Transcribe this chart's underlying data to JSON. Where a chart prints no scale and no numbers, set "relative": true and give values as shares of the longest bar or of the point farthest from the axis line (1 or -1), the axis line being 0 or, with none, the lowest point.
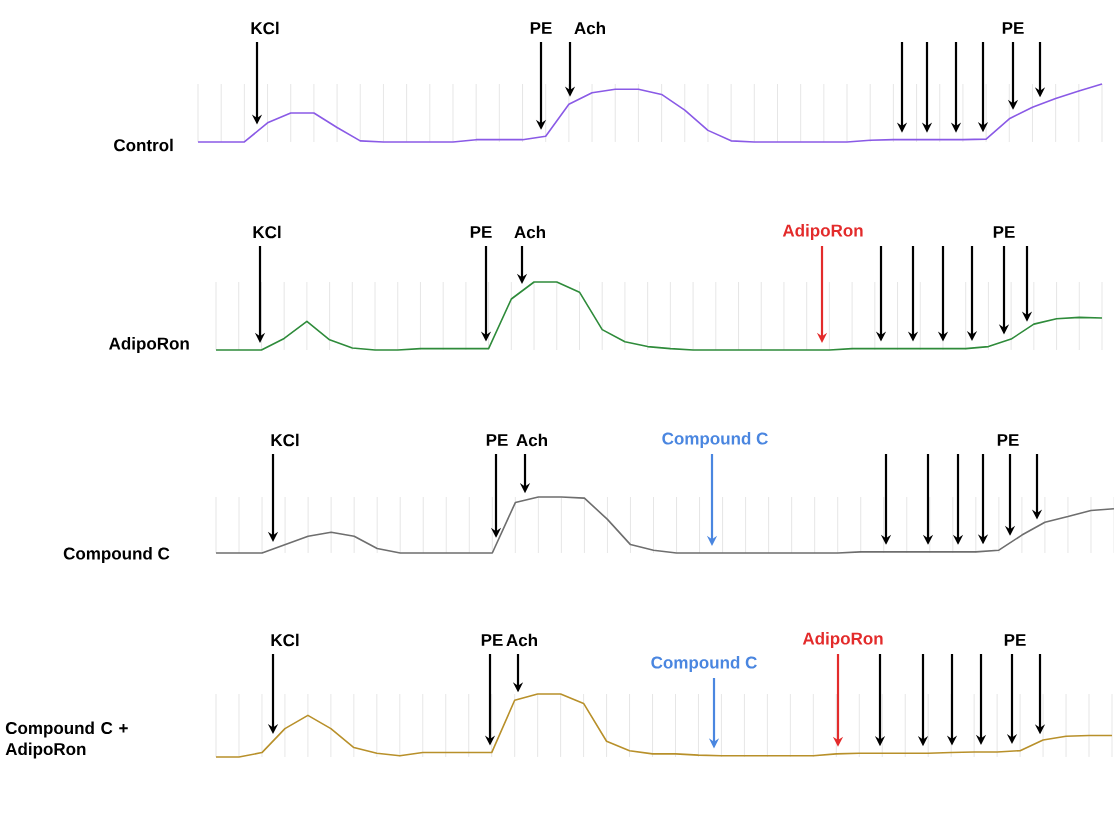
{
  "chart_data": [
    {
      "type": "line",
      "title": "Control",
      "relative": true,
      "grid": "x",
      "color": "#8a5ae6",
      "categories": [
        null,
        null,
        null,
        null,
        null,
        null,
        null,
        null,
        null,
        null,
        null,
        null,
        null,
        null,
        null,
        null,
        null,
        null,
        null,
        null,
        null,
        null,
        null,
        null,
        null,
        null,
        null,
        null,
        null,
        null,
        null,
        null,
        null,
        null,
        null,
        null,
        null,
        null,
        null,
        null
      ],
      "values": [
        0,
        0,
        0,
        0.33,
        0.5,
        0.5,
        0.25,
        0.02,
        0,
        0,
        0,
        0,
        0.04,
        0.04,
        0.04,
        0.1,
        0.65,
        0.85,
        0.91,
        0.91,
        0.82,
        0.55,
        0.2,
        0.02,
        0,
        0,
        0,
        0,
        0,
        0.03,
        0.04,
        0.04,
        0.04,
        0.04,
        0.05,
        0.4,
        0.6,
        0.75,
        0.88,
        1.0
      ],
      "annotations": [
        "KCl",
        "PE",
        "Ach",
        "PE"
      ]
    },
    {
      "type": "line",
      "title": "AdipoRon",
      "relative": true,
      "grid": "x",
      "color": "#2e8b3a",
      "categories": [
        null,
        null,
        null,
        null,
        null,
        null,
        null,
        null,
        null,
        null,
        null,
        null,
        null,
        null,
        null,
        null,
        null,
        null,
        null,
        null,
        null,
        null,
        null,
        null,
        null,
        null,
        null,
        null,
        null,
        null,
        null,
        null,
        null,
        null,
        null,
        null,
        null,
        null,
        null,
        null
      ],
      "values": [
        0,
        0,
        0,
        0.17,
        0.42,
        0.15,
        0.03,
        0,
        0,
        0.02,
        0.02,
        0.02,
        0.02,
        0.75,
        1.0,
        1.0,
        0.85,
        0.3,
        0.12,
        0.05,
        0.02,
        0,
        0,
        0,
        0,
        0,
        0,
        0,
        0.02,
        0.02,
        0.02,
        0.02,
        0.02,
        0.02,
        0.05,
        0.16,
        0.38,
        0.46,
        0.48,
        0.47
      ],
      "annotations": [
        "KCl",
        "PE",
        "Ach",
        "AdipoRon",
        "PE"
      ]
    },
    {
      "type": "line",
      "title": "Compound C",
      "relative": true,
      "grid": "x",
      "color": "#6e6e6e",
      "categories": [
        null,
        null,
        null,
        null,
        null,
        null,
        null,
        null,
        null,
        null,
        null,
        null,
        null,
        null,
        null,
        null,
        null,
        null,
        null,
        null,
        null,
        null,
        null,
        null,
        null,
        null,
        null,
        null,
        null,
        null,
        null,
        null,
        null,
        null,
        null,
        null,
        null,
        null,
        null,
        null
      ],
      "values": [
        0,
        0,
        0,
        0.15,
        0.3,
        0.37,
        0.3,
        0.08,
        0,
        0,
        0,
        0,
        0,
        0.9,
        1,
        1,
        0.98,
        0.6,
        0.15,
        0.05,
        0,
        0,
        0,
        0,
        0,
        0,
        0,
        0,
        0.02,
        0.02,
        0.02,
        0.02,
        0.02,
        0.02,
        0.05,
        0.32,
        0.55,
        0.65,
        0.76,
        0.79
      ],
      "annotations": [
        "KCl",
        "PE",
        "Ach",
        "Compound C",
        "PE"
      ]
    },
    {
      "type": "line",
      "title": "Compound C + AdipoRon",
      "relative": true,
      "grid": "x",
      "color": "#b8902a",
      "categories": [
        null,
        null,
        null,
        null,
        null,
        null,
        null,
        null,
        null,
        null,
        null,
        null,
        null,
        null,
        null,
        null,
        null,
        null,
        null,
        null,
        null,
        null,
        null,
        null,
        null,
        null,
        null,
        null,
        null,
        null,
        null,
        null,
        null,
        null,
        null,
        null,
        null,
        null,
        null,
        null
      ],
      "values": [
        0,
        0,
        0.07,
        0.45,
        0.66,
        0.45,
        0.15,
        0.06,
        0.02,
        0.07,
        0.07,
        0.07,
        0.07,
        0.9,
        1,
        1,
        0.85,
        0.25,
        0.1,
        0.05,
        0.05,
        0.03,
        0.02,
        0.02,
        0.02,
        0.02,
        0.02,
        0.05,
        0.06,
        0.06,
        0.06,
        0.06,
        0.07,
        0.08,
        0.08,
        0.1,
        0.27,
        0.33,
        0.34,
        0.34
      ],
      "annotations": [
        "KCl",
        "PE",
        "Ach",
        "Compound C",
        "AdipoRon",
        "PE"
      ]
    }
  ]
}
